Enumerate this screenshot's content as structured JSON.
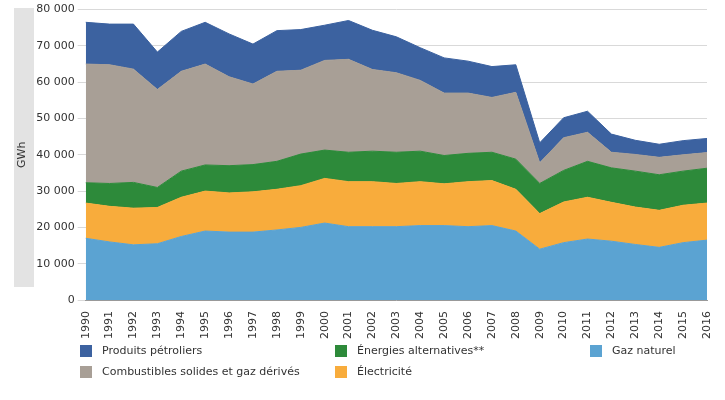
{
  "chart_data": {
    "type": "area",
    "stacked": true,
    "grid": true,
    "legend": "bottom",
    "y_label": "GWh",
    "categories": [
      "1990",
      "1991",
      "1992",
      "1993",
      "1994",
      "1995",
      "1996",
      "1997",
      "1998",
      "1999",
      "2000",
      "2001",
      "2002",
      "2003",
      "2004",
      "2005",
      "2006",
      "2007",
      "2008",
      "2009",
      "2010",
      "2011",
      "2012",
      "2013",
      "2014",
      "2015",
      "2016"
    ],
    "ylim": [
      0,
      80000
    ],
    "yticks": [
      0,
      {
        "value": 10000,
        "label": "10 000"
      },
      {
        "value": 20000,
        "label": "20 000"
      },
      {
        "value": 30000,
        "label": "30 000"
      },
      {
        "value": 40000,
        "label": "40 000"
      },
      {
        "value": 50000,
        "label": "50 000"
      },
      {
        "value": 60000,
        "label": "60 000"
      },
      {
        "value": 70000,
        "label": "70 000"
      },
      {
        "value": 80000,
        "label": "80 000"
      }
    ],
    "series": [
      {
        "name": "Produits pétroliers",
        "color": "#3c62a0",
        "values": [
          11500,
          11200,
          12400,
          10300,
          11000,
          11500,
          11800,
          11000,
          11200,
          11200,
          9700,
          10700,
          10800,
          9900,
          9000,
          9700,
          8800,
          8500,
          7600,
          5500,
          5500,
          5800,
          5000,
          3900,
          3600,
          3900,
          3900
        ]
      },
      {
        "name": "Combustibles solides et gaz dérivés",
        "color": "#a89f96",
        "values": [
          32700,
          32700,
          31200,
          27000,
          27500,
          27800,
          24500,
          22200,
          24800,
          23100,
          24700,
          25600,
          22500,
          21900,
          19500,
          17200,
          16600,
          15100,
          18400,
          5700,
          9000,
          8000,
          4300,
          4600,
          4800,
          4500,
          4300
        ]
      },
      {
        "name": "Énergies alternatives**",
        "color": "#2d8a3a",
        "values": [
          5600,
          6300,
          7100,
          5500,
          7200,
          7200,
          7500,
          7500,
          7700,
          8700,
          7800,
          8100,
          8400,
          8600,
          8400,
          7800,
          7800,
          7800,
          8300,
          8300,
          8700,
          9900,
          9500,
          9900,
          9800,
          9400,
          9600
        ]
      },
      {
        "name": "Électricité",
        "color": "#f8ac3c",
        "values": [
          9700,
          9800,
          10100,
          10000,
          10800,
          11000,
          10800,
          11100,
          11200,
          11500,
          12300,
          12400,
          12400,
          11900,
          12100,
          11500,
          12400,
          12400,
          11500,
          9800,
          11200,
          11500,
          10700,
          10300,
          10200,
          10300,
          10200
        ]
      },
      {
        "name": "Gaz naturel",
        "color": "#5ba3d2",
        "values": [
          17000,
          16000,
          15200,
          15500,
          17500,
          19000,
          18700,
          18700,
          19300,
          20000,
          21200,
          20200,
          20200,
          20200,
          20500,
          20500,
          20200,
          20500,
          19000,
          14000,
          15800,
          16800,
          16200,
          15300,
          14500,
          15800,
          16500
        ]
      }
    ]
  }
}
